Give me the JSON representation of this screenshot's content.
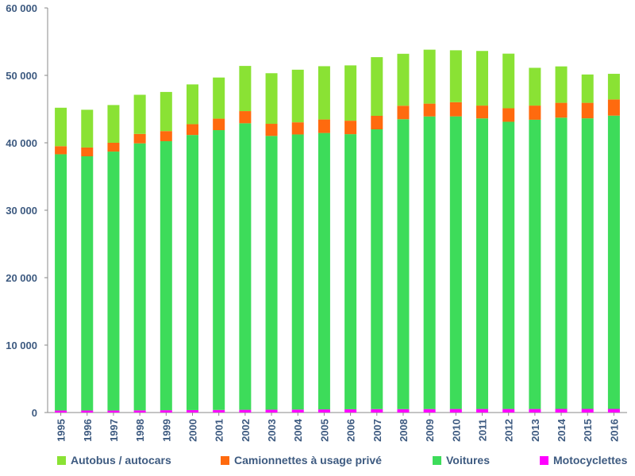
{
  "chart_data": {
    "type": "bar",
    "stacked": true,
    "categories": [
      "1995",
      "1996",
      "1997",
      "1998",
      "1999",
      "2000",
      "2001",
      "2002",
      "2003",
      "2004",
      "2005",
      "2006",
      "2007",
      "2008",
      "2009",
      "2010",
      "2011",
      "2012",
      "2013",
      "2014",
      "2015",
      "2016"
    ],
    "series": [
      {
        "name": "Motocyclettes",
        "color": "#ff00ff",
        "values": [
          300,
          300,
          300,
          320,
          340,
          360,
          380,
          400,
          420,
          440,
          460,
          480,
          500,
          500,
          510,
          520,
          520,
          520,
          520,
          530,
          530,
          530
        ]
      },
      {
        "name": "Voitures",
        "color": "#3ddc5a",
        "values": [
          38000,
          37700,
          38400,
          39600,
          39900,
          40800,
          41500,
          42500,
          40600,
          40800,
          41000,
          40800,
          41500,
          43000,
          43400,
          43400,
          43100,
          42600,
          42900,
          43200,
          43100,
          43500
        ]
      },
      {
        "name": "Camionnettes à usage privé",
        "color": "#ff6a0e",
        "values": [
          1200,
          1300,
          1300,
          1400,
          1500,
          1600,
          1700,
          1800,
          1800,
          1800,
          2000,
          2000,
          2000,
          2000,
          1900,
          2100,
          1900,
          2000,
          2100,
          2200,
          2300,
          2400
        ]
      },
      {
        "name": "Autobus / autocars",
        "color": "#8ae234",
        "values": [
          5700,
          5600,
          5600,
          5800,
          5800,
          5900,
          6100,
          6700,
          7500,
          7800,
          7900,
          8200,
          8700,
          7700,
          8000,
          7700,
          8100,
          8100,
          5600,
          5400,
          4200,
          3800
        ]
      }
    ],
    "ylim": [
      0,
      60000
    ],
    "yticks": [
      0,
      10000,
      20000,
      30000,
      40000,
      50000,
      60000
    ],
    "ytick_labels": [
      "0",
      "10 000",
      "20 000",
      "30 000",
      "40 000",
      "50 000",
      "60 000"
    ],
    "grid": false,
    "legend_position": "bottom",
    "legend_order": [
      "Autobus / autocars",
      "Camionnettes à usage privé",
      "Voitures",
      "Motocyclettes"
    ]
  }
}
